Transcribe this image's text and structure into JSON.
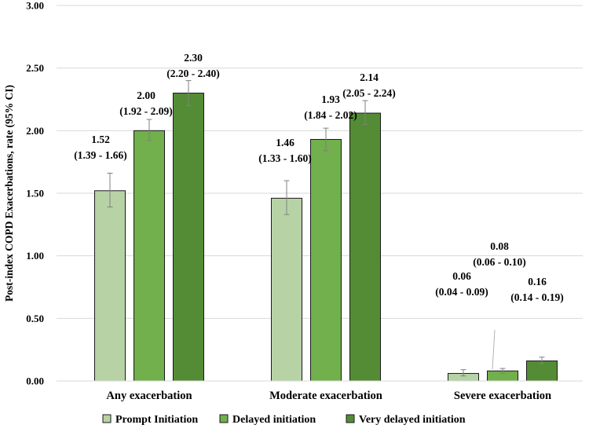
{
  "chart_data": {
    "type": "bar",
    "title": "",
    "xlabel": "",
    "ylabel": "Post-index COPD Exacerbations, rate (95% CI)",
    "ylim": [
      0,
      3
    ],
    "yticks": [
      "0.00",
      "0.50",
      "1.00",
      "1.50",
      "2.00",
      "2.50",
      "3.00"
    ],
    "grid": "horizontal",
    "legend_position": "bottom",
    "categories": [
      "Any exacerbation",
      "Moderate exacerbation",
      "Severe exacerbation"
    ],
    "series": [
      {
        "name": "Prompt Initiation",
        "color": "#b7d3a6",
        "values": [
          1.52,
          1.46,
          0.06
        ],
        "ci_low": [
          1.39,
          1.33,
          0.04
        ],
        "ci_high": [
          1.66,
          1.6,
          0.09
        ],
        "value_labels": [
          "1.52",
          "1.46",
          "0.06"
        ],
        "ci_labels": [
          "(1.39 - 1.66)",
          "(1.33 - 1.60)",
          "(0.04 - 0.09)"
        ]
      },
      {
        "name": "Delayed initiation",
        "color": "#71b04c",
        "values": [
          2.0,
          1.93,
          0.08
        ],
        "ci_low": [
          1.92,
          1.84,
          0.06
        ],
        "ci_high": [
          2.09,
          2.02,
          0.1
        ],
        "value_labels": [
          "2.00",
          "1.93",
          "0.08"
        ],
        "ci_labels": [
          "(1.92 - 2.09)",
          "(1.84 - 2.02)",
          "(0.06 - 0.10)"
        ]
      },
      {
        "name": "Very delayed initiation",
        "color": "#548c35",
        "values": [
          2.3,
          2.14,
          0.16
        ],
        "ci_low": [
          2.2,
          2.05,
          0.14
        ],
        "ci_high": [
          2.4,
          2.24,
          0.19
        ],
        "value_labels": [
          "2.30",
          "2.14",
          "0.16"
        ],
        "ci_labels": [
          "(2.20 - 2.40)",
          "(2.05 - 2.24)",
          "(0.14 - 0.19)"
        ]
      }
    ]
  }
}
